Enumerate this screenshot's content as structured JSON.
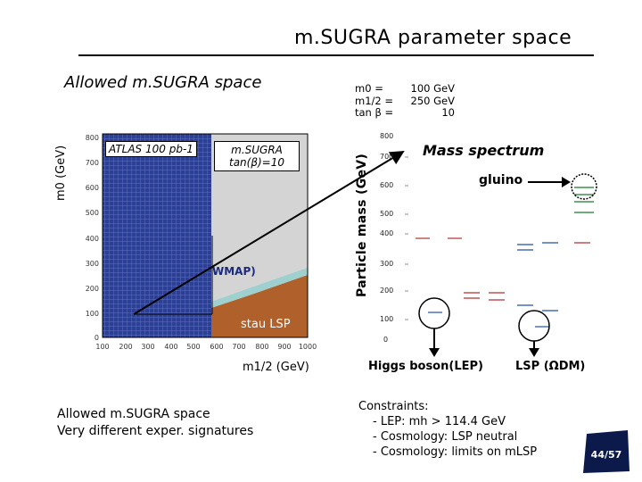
{
  "header": {
    "title": "m.SUGRA parameter space"
  },
  "left_panel": {
    "heading": "Allowed m.SUGRA space",
    "m0_axis_label": "m0 (GeV)",
    "m12_axis_label": "m1/2 (GeV)",
    "atlas_label": "ATLAS 100 pb-1",
    "msugra_box": [
      "m.SUGRA",
      "tan(β)=10"
    ],
    "wmap_label": "WMAP)",
    "stau_label": "stau LSP",
    "x_ticks": [
      "100",
      "200",
      "300",
      "400",
      "500",
      "600",
      "700",
      "800",
      "900",
      "1000"
    ],
    "y_ticks": [
      "0",
      "100",
      "200",
      "300",
      "400",
      "500",
      "600",
      "700",
      "800"
    ]
  },
  "params": [
    {
      "name": "m0",
      "eq": "=",
      "value": "100 GeV"
    },
    {
      "name": "m1/2",
      "eq": "=",
      "value": "250 GeV"
    },
    {
      "name": "tan β =",
      "eq": "",
      "value": "10"
    }
  ],
  "spectrum": {
    "axis_label": "Particle mass (GeV)",
    "title": "Mass spectrum",
    "gluino_label": "gluino",
    "y_ticks": [
      "800",
      "700",
      "600",
      "500",
      "400",
      "300",
      "200",
      "100",
      "0"
    ],
    "higgs_label": "Higgs boson(LEP)",
    "lsp_label": "LSP (ΩDM)"
  },
  "bottom_left": [
    "Allowed m.SUGRA space",
    "Very different exper. signatures"
  ],
  "constraints": {
    "heading": "Constraints:",
    "items": [
      "- LEP: mh > 114.4 GeV",
      "- Cosmology: LSP neutral",
      "- Cosmology: limits on mLSP"
    ]
  },
  "page": {
    "current": "44",
    "total": "57"
  },
  "colors": {
    "grid_blue": "#2b3f95",
    "stau_brown": "#b0602a",
    "band_teal": "#9fd0d0",
    "gray_region": "#d4d4d4"
  }
}
